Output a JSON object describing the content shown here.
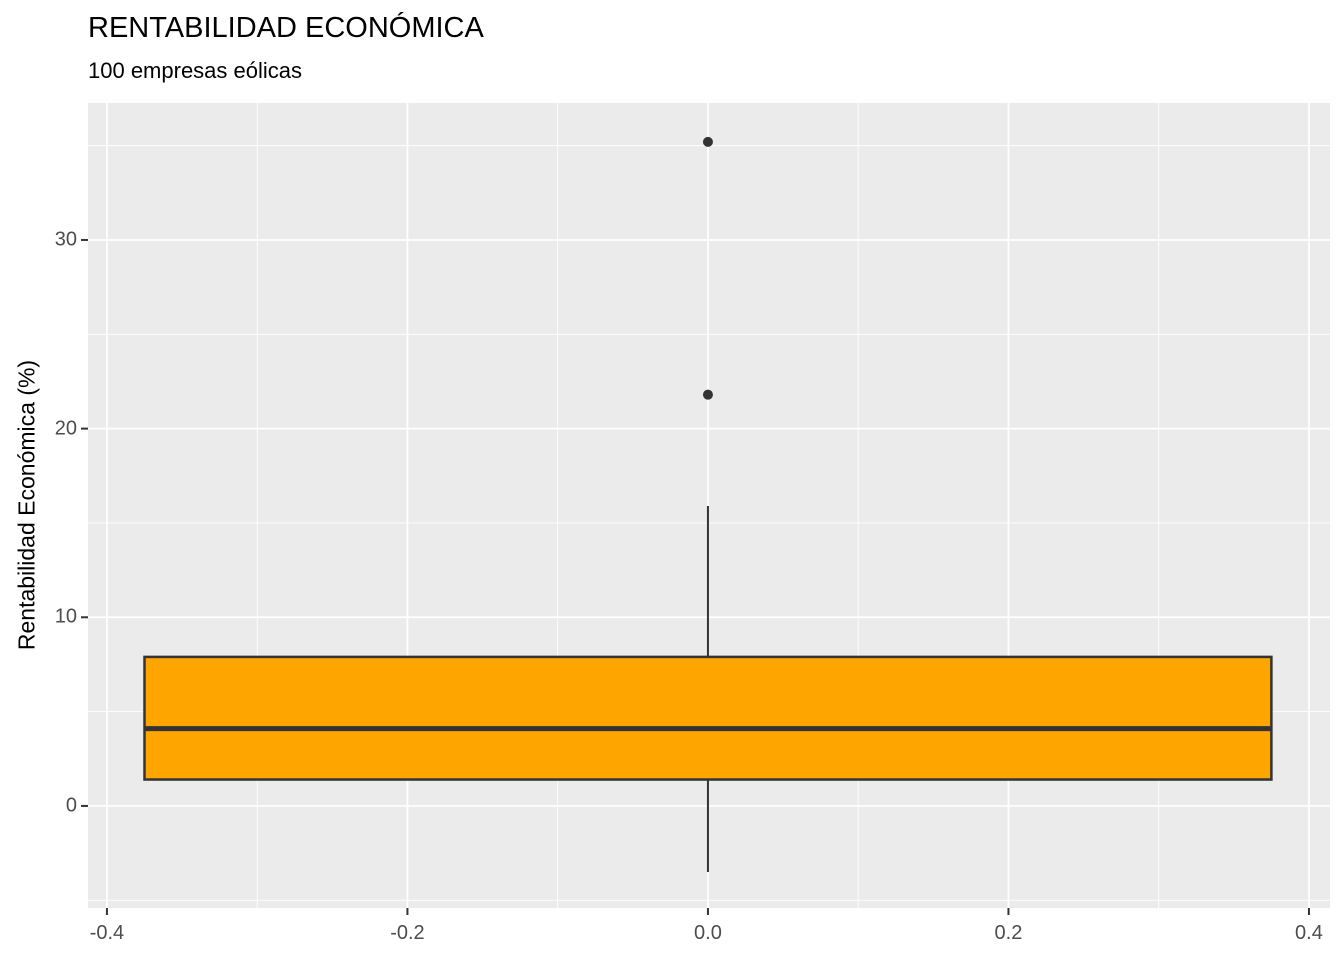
{
  "chart": {
    "title": "RENTABILIDAD ECONÓMICA",
    "subtitle": "100 empresas eólicas",
    "ylabel": "Rentabilidad Económica (%)",
    "xlabel": ""
  },
  "chart_data": {
    "type": "boxplot",
    "title": "RENTABILIDAD ECONÓMICA",
    "subtitle": "100 empresas eólicas",
    "xlabel": "",
    "ylabel": "Rentabilidad Económica (%)",
    "orientation": "vertical",
    "grid": true,
    "legend": false,
    "series": [
      {
        "name": "Rentabilidad Económica (100 empresas eólicas)",
        "x_center": 0,
        "box_width": 0.75,
        "whisker_low": -3.5,
        "q1": 1.4,
        "median": 4.1,
        "q3": 7.9,
        "whisker_high": 15.9,
        "outliers": [
          21.8,
          35.2
        ]
      }
    ],
    "x_ticks": [
      -0.4,
      -0.2,
      0.0,
      0.2,
      0.4
    ],
    "x_tick_labels": [
      "-0.4",
      "-0.2",
      "0.0",
      "0.2",
      "0.4"
    ],
    "x_minor_ticks": [
      -0.3,
      -0.1,
      0.1,
      0.3
    ],
    "y_ticks": [
      0,
      10,
      20,
      30
    ],
    "y_tick_labels": [
      "0",
      "10",
      "20",
      "30"
    ],
    "y_minor_ticks": [
      -5,
      5,
      15,
      25,
      35
    ],
    "xlim": [
      -0.4126,
      0.414
    ],
    "ylim": [
      -5.41,
      37.26
    ],
    "colors": {
      "box_fill": "#FFA500",
      "box_stroke": "#333333",
      "median": "#333333",
      "whisker": "#333333",
      "outlier": "#333333",
      "panel_bg": "#EBEBEB",
      "grid": "#FFFFFF",
      "tick_mark": "#333333",
      "tick_text": "#4D4D4D",
      "title_text": "#000000"
    }
  }
}
